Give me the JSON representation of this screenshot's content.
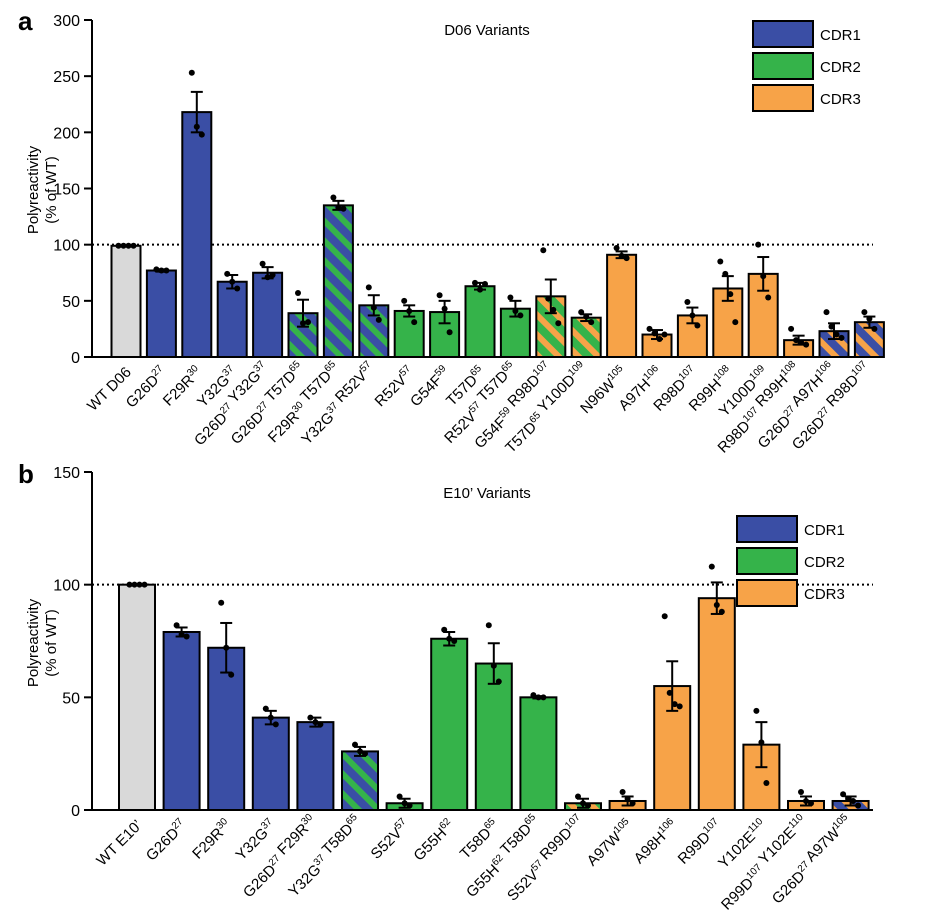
{
  "colors": {
    "WT": "#d9d9d9",
    "CDR1": "#3a4ea5",
    "CDR2": "#35b34a",
    "CDR3": "#f7a348"
  },
  "chart_data": [
    {
      "type": "bar",
      "panel": "a",
      "title": "D06 Variants",
      "ylabel": "Polyreactivity\n(% of WT)",
      "xlabel": "",
      "ylim": [
        0,
        300
      ],
      "yticks": [
        0,
        50,
        100,
        150,
        200,
        250,
        300
      ],
      "reference_line": 100,
      "legend": {
        "placement": "top-right",
        "entries": [
          "CDR1",
          "CDR2",
          "CDR3"
        ]
      },
      "categories": [
        "WT D06",
        "G26D27",
        "F29R30",
        "Y32G37",
        "G26D27 Y32G37",
        "G26D27 T57D65",
        "F29R30 T57D65",
        "Y32G37 R52V57",
        "R52V57",
        "G54F59",
        "T57D65",
        "R52V57 T57D65",
        "G54F59 R98D107",
        "T57D65 Y100D109",
        "N96W105",
        "A97H106",
        "R98D107",
        "R99H108",
        "Y100D109",
        "R98D107 R99H108",
        "G26D27 A97H106",
        "G26D27 R98D107"
      ],
      "bars": [
        {
          "label": [
            [
              "WT D06",
              ""
            ]
          ],
          "value": 99,
          "sem": 0,
          "points": [
            99,
            99,
            99,
            99
          ],
          "fill": "WT"
        },
        {
          "label": [
            [
              "G26D",
              "27"
            ]
          ],
          "value": 77,
          "sem": 1,
          "points": [
            78,
            77,
            77
          ],
          "fill": "CDR1"
        },
        {
          "label": [
            [
              "F29R",
              "30"
            ]
          ],
          "value": 218,
          "sem": 18,
          "points": [
            253,
            205,
            198
          ],
          "fill": "CDR1"
        },
        {
          "label": [
            [
              "Y32G",
              "37"
            ]
          ],
          "value": 67,
          "sem": 6,
          "points": [
            74,
            67,
            61
          ],
          "fill": "CDR1"
        },
        {
          "label": [
            [
              "G26D",
              "27"
            ],
            [
              " Y32G",
              "37"
            ]
          ],
          "value": 75,
          "sem": 5,
          "points": [
            83,
            71,
            73
          ],
          "fill": "CDR1"
        },
        {
          "label": [
            [
              "G26D",
              "27"
            ],
            [
              " T57D",
              "65"
            ]
          ],
          "value": 39,
          "sem": 12,
          "points": [
            57,
            30,
            31
          ],
          "fill": "CDR1",
          "stripe": "CDR2"
        },
        {
          "label": [
            [
              "F29R",
              "30"
            ],
            [
              " T57D",
              "65"
            ]
          ],
          "value": 135,
          "sem": 4,
          "points": [
            142,
            133,
            132
          ],
          "fill": "CDR1",
          "stripe": "CDR2"
        },
        {
          "label": [
            [
              "Y32G",
              "37"
            ],
            [
              " R52V",
              "57"
            ]
          ],
          "value": 46,
          "sem": 9,
          "points": [
            62,
            44,
            33
          ],
          "fill": "CDR1",
          "stripe": "CDR2"
        },
        {
          "label": [
            [
              "R52V",
              "57"
            ]
          ],
          "value": 41,
          "sem": 5,
          "points": [
            50,
            41,
            31
          ],
          "fill": "CDR2"
        },
        {
          "label": [
            [
              "G54F",
              "59"
            ]
          ],
          "value": 40,
          "sem": 10,
          "points": [
            55,
            43,
            22
          ],
          "fill": "CDR2"
        },
        {
          "label": [
            [
              "T57D",
              "65"
            ]
          ],
          "value": 63,
          "sem": 3,
          "points": [
            66,
            60,
            65
          ],
          "fill": "CDR2"
        },
        {
          "label": [
            [
              "R52V",
              "57"
            ],
            [
              " T57D",
              "65"
            ]
          ],
          "value": 43,
          "sem": 7,
          "points": [
            53,
            41,
            37
          ],
          "fill": "CDR2"
        },
        {
          "label": [
            [
              "G54F",
              "59"
            ],
            [
              " R98D",
              "107"
            ]
          ],
          "value": 54,
          "sem": 15,
          "points": [
            95,
            52,
            42,
            30
          ],
          "fill": "CDR2",
          "stripe": "CDR3"
        },
        {
          "label": [
            [
              "T57D",
              "65"
            ],
            [
              " Y100D",
              "109"
            ]
          ],
          "value": 35,
          "sem": 3,
          "points": [
            40,
            36,
            31
          ],
          "fill": "CDR2",
          "stripe": "CDR3"
        },
        {
          "label": [
            [
              "N96W",
              "105"
            ]
          ],
          "value": 91,
          "sem": 3,
          "points": [
            97,
            90,
            88
          ],
          "fill": "CDR3"
        },
        {
          "label": [
            [
              "A97H",
              "106"
            ]
          ],
          "value": 20,
          "sem": 4,
          "points": [
            25,
            21,
            16,
            20
          ],
          "fill": "CDR3"
        },
        {
          "label": [
            [
              "R98D",
              "107"
            ]
          ],
          "value": 37,
          "sem": 7,
          "points": [
            49,
            37,
            28
          ],
          "fill": "CDR3"
        },
        {
          "label": [
            [
              "R99H",
              "108"
            ]
          ],
          "value": 61,
          "sem": 11,
          "points": [
            85,
            74,
            56,
            31
          ],
          "fill": "CDR3"
        },
        {
          "label": [
            [
              "Y100D",
              "109"
            ]
          ],
          "value": 74,
          "sem": 15,
          "points": [
            100,
            72,
            53
          ],
          "fill": "CDR3"
        },
        {
          "label": [
            [
              "R98D",
              "107"
            ],
            [
              " R99H",
              "108"
            ]
          ],
          "value": 15,
          "sem": 4,
          "points": [
            25,
            15,
            13,
            11
          ],
          "fill": "CDR3"
        },
        {
          "label": [
            [
              "G26D",
              "27"
            ],
            [
              " A97H",
              "106"
            ]
          ],
          "value": 23,
          "sem": 7,
          "points": [
            40,
            27,
            20,
            17
          ],
          "fill": "CDR1",
          "stripe": "CDR3"
        },
        {
          "label": [
            [
              "G26D",
              "27"
            ],
            [
              " R98D",
              "107"
            ]
          ],
          "value": 31,
          "sem": 5,
          "points": [
            40,
            34,
            25
          ],
          "fill": "CDR1",
          "stripe": "CDR3"
        }
      ]
    },
    {
      "type": "bar",
      "panel": "b",
      "title": "E10’ Variants",
      "ylabel": "Polyreactivity\n(% of WT)",
      "xlabel": "",
      "ylim": [
        0,
        150
      ],
      "yticks": [
        0,
        50,
        100,
        150
      ],
      "reference_line": 100,
      "legend": {
        "placement": "top-right",
        "entries": [
          "CDR1",
          "CDR2",
          "CDR3"
        ]
      },
      "categories": [
        "WT E10’",
        "G26D27",
        "F29R30",
        "Y32G37",
        "G26D27 F29R30",
        "Y32G37 T58D65",
        "S52V57",
        "G55H62",
        "T58D65",
        "G55H62 T58D65",
        "S52V57 R99D107",
        "A97W105",
        "A98H106",
        "R99D107",
        "Y102E110",
        "R99D107 Y102E110",
        "G26D27 A97W105"
      ],
      "bars": [
        {
          "label": [
            [
              "WT E10’",
              ""
            ]
          ],
          "value": 100,
          "sem": 0,
          "points": [
            100,
            100,
            100,
            100
          ],
          "fill": "WT"
        },
        {
          "label": [
            [
              "G26D",
              "27"
            ]
          ],
          "value": 79,
          "sem": 2,
          "points": [
            82,
            78,
            77
          ],
          "fill": "CDR1"
        },
        {
          "label": [
            [
              "F29R",
              "30"
            ]
          ],
          "value": 72,
          "sem": 11,
          "points": [
            92,
            72,
            60
          ],
          "fill": "CDR1"
        },
        {
          "label": [
            [
              "Y32G",
              "37"
            ]
          ],
          "value": 41,
          "sem": 3,
          "points": [
            45,
            41,
            38
          ],
          "fill": "CDR1"
        },
        {
          "label": [
            [
              "G26D",
              "27"
            ],
            [
              " F29R",
              "30"
            ]
          ],
          "value": 39,
          "sem": 2,
          "points": [
            41,
            39,
            38
          ],
          "fill": "CDR1"
        },
        {
          "label": [
            [
              "Y32G",
              "37"
            ],
            [
              " T58D",
              "65"
            ]
          ],
          "value": 26,
          "sem": 2,
          "points": [
            29,
            26,
            25
          ],
          "fill": "CDR1",
          "stripe": "CDR2"
        },
        {
          "label": [
            [
              "S52V",
              "57"
            ]
          ],
          "value": 3,
          "sem": 2,
          "points": [
            6,
            3,
            2
          ],
          "fill": "CDR2"
        },
        {
          "label": [
            [
              "G55H",
              "62"
            ]
          ],
          "value": 76,
          "sem": 3,
          "points": [
            80,
            76,
            75
          ],
          "fill": "CDR2"
        },
        {
          "label": [
            [
              "T58D",
              "65"
            ]
          ],
          "value": 65,
          "sem": 9,
          "points": [
            82,
            64,
            57
          ],
          "fill": "CDR2"
        },
        {
          "label": [
            [
              "G55H",
              "62"
            ],
            [
              " T58D",
              "65"
            ]
          ],
          "value": 50,
          "sem": 0.5,
          "points": [
            51,
            50,
            50
          ],
          "fill": "CDR2"
        },
        {
          "label": [
            [
              "S52V",
              "57"
            ],
            [
              " R99D",
              "107"
            ]
          ],
          "value": 3,
          "sem": 2,
          "points": [
            6,
            3,
            2
          ],
          "fill": "CDR2",
          "stripe": "CDR3"
        },
        {
          "label": [
            [
              "A97W",
              "105"
            ]
          ],
          "value": 4,
          "sem": 2,
          "points": [
            8,
            5,
            3
          ],
          "fill": "CDR3"
        },
        {
          "label": [
            [
              "A98H",
              "106"
            ]
          ],
          "value": 55,
          "sem": 11,
          "points": [
            86,
            52,
            47,
            46
          ],
          "fill": "CDR3"
        },
        {
          "label": [
            [
              "R99D",
              "107"
            ]
          ],
          "value": 94,
          "sem": 7,
          "points": [
            108,
            91,
            88
          ],
          "fill": "CDR3"
        },
        {
          "label": [
            [
              "Y102E",
              "110"
            ]
          ],
          "value": 29,
          "sem": 10,
          "points": [
            44,
            30,
            12
          ],
          "fill": "CDR3"
        },
        {
          "label": [
            [
              "R99D",
              "107"
            ],
            [
              " Y102E",
              "110"
            ]
          ],
          "value": 4,
          "sem": 2,
          "points": [
            8,
            4,
            3
          ],
          "fill": "CDR3"
        },
        {
          "label": [
            [
              "G26D",
              "27"
            ],
            [
              " A97W",
              "105"
            ]
          ],
          "value": 4,
          "sem": 2,
          "points": [
            7,
            5,
            4,
            2
          ],
          "fill": "CDR1",
          "stripe": "CDR3"
        }
      ]
    }
  ]
}
